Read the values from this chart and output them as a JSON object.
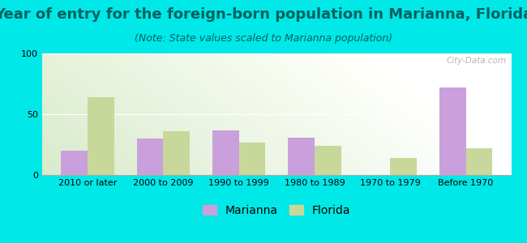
{
  "title": "Year of entry for the foreign-born population in Marianna, Florida",
  "subtitle": "(Note: State values scaled to Marianna population)",
  "categories": [
    "2010 or later",
    "2000 to 2009",
    "1990 to 1999",
    "1980 to 1989",
    "1970 to 1979",
    "Before 1970"
  ],
  "marianna_values": [
    20,
    30,
    37,
    31,
    0,
    72
  ],
  "florida_values": [
    64,
    36,
    27,
    24,
    14,
    22
  ],
  "marianna_color": "#c9a0dc",
  "florida_color": "#c8d89a",
  "background_outer": "#00e8e8",
  "ylim": [
    0,
    100
  ],
  "yticks": [
    0,
    50,
    100
  ],
  "bar_width": 0.35,
  "title_fontsize": 13,
  "subtitle_fontsize": 9,
  "legend_fontsize": 10,
  "tick_fontsize": 8,
  "title_color": "#006060",
  "subtitle_color": "#006060",
  "watermark": "City-Data.com"
}
